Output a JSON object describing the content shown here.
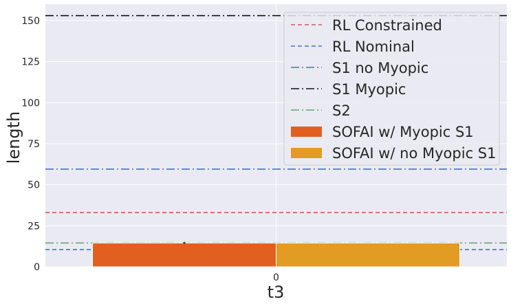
{
  "chart_data": {
    "type": "bar",
    "categories": [
      "0"
    ],
    "xlabel": "t3",
    "ylabel": "length",
    "ylim": [
      0,
      160
    ],
    "yticks": [
      0,
      25,
      50,
      75,
      100,
      125,
      150
    ],
    "grid": true,
    "legend_position": "top-right",
    "series": [
      {
        "name": "SOFAI w/ Myopic S1",
        "kind": "bar",
        "color": "#e1601f",
        "values": [
          14.5
        ]
      },
      {
        "name": "SOFAI w/ no Myopic S1",
        "kind": "bar",
        "color": "#e29c23",
        "values": [
          14.5
        ]
      }
    ],
    "hlines": [
      {
        "name": "RL Constrained",
        "value": 33,
        "color": "#d1575b",
        "style": "dashed"
      },
      {
        "name": "RL Nominal",
        "value": 10.5,
        "color": "#4a70c4",
        "style": "dashed"
      },
      {
        "name": "S1 no Myopic",
        "value": 59.5,
        "color": "#4a70c4",
        "style": "dashdot"
      },
      {
        "name": "S1 Myopic",
        "value": 153,
        "color": "#111111",
        "style": "dashdot"
      },
      {
        "name": "S2",
        "value": 14.5,
        "color": "#5fa36a",
        "style": "dashdot"
      }
    ],
    "legend_order": [
      "RL Constrained",
      "RL Nominal",
      "S1 no Myopic",
      "S1 Myopic",
      "S2",
      "SOFAI w/ Myopic S1",
      "SOFAI w/ no Myopic S1"
    ]
  }
}
